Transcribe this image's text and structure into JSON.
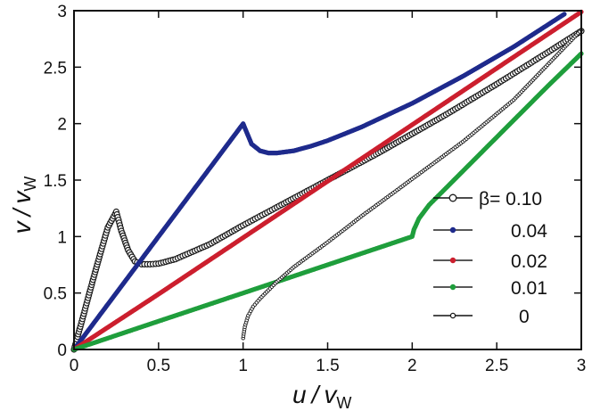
{
  "chart_data": {
    "type": "line",
    "title": "",
    "xlabel": {
      "main": "u",
      "slash": "/",
      "v": "v",
      "sub": "W"
    },
    "ylabel": {
      "main": "v",
      "slash": "/",
      "v": "v",
      "sub": "W"
    },
    "xlim": [
      0,
      3
    ],
    "ylim": [
      0,
      3
    ],
    "x_ticks": [
      "0",
      "0.5",
      "1",
      "1.5",
      "2",
      "2.5",
      "3"
    ],
    "x_tick_values": [
      0,
      0.5,
      1,
      1.5,
      2,
      2.5,
      3
    ],
    "y_ticks": [
      "0",
      "0.5",
      "1",
      "1.5",
      "2",
      "2.5",
      "3"
    ],
    "y_tick_values": [
      0,
      0.5,
      1,
      1.5,
      2,
      2.5,
      3
    ],
    "legend_position": "lower-right",
    "legend_title": "β",
    "series": [
      {
        "name": "0.10",
        "label": "β= 0.10",
        "color": "#1a1a1a",
        "marker": "open-circle",
        "x": [
          0,
          0.05,
          0.1,
          0.15,
          0.2,
          0.25,
          0.28,
          0.32,
          0.36,
          0.4,
          0.45,
          0.5,
          0.6,
          0.8,
          1.0,
          1.2,
          1.5,
          1.8,
          2.0,
          2.2,
          2.5,
          2.8,
          3.0
        ],
        "y": [
          0,
          0.27,
          0.55,
          0.82,
          1.08,
          1.22,
          1.05,
          0.88,
          0.78,
          0.755,
          0.755,
          0.76,
          0.8,
          0.93,
          1.1,
          1.26,
          1.5,
          1.74,
          1.91,
          2.08,
          2.35,
          2.63,
          2.82
        ]
      },
      {
        "name": "0.04",
        "label": "0.04",
        "color": "#1e2a8c",
        "marker": "filled-circle",
        "x": [
          0,
          0.25,
          0.5,
          0.75,
          1.0,
          1.05,
          1.1,
          1.15,
          1.2,
          1.3,
          1.4,
          1.5,
          1.7,
          2.0,
          2.3,
          2.6,
          2.9
        ],
        "y": [
          0,
          0.5,
          1.0,
          1.5,
          2.0,
          1.82,
          1.76,
          1.74,
          1.74,
          1.76,
          1.8,
          1.85,
          1.97,
          2.18,
          2.42,
          2.68,
          2.97
        ]
      },
      {
        "name": "0.02",
        "label": "0.02",
        "color": "#cc1f2e",
        "marker": "filled-circle",
        "x": [
          0,
          0.5,
          1.0,
          1.5,
          2.0,
          2.5,
          3.0
        ],
        "y": [
          0,
          0.49,
          0.99,
          1.49,
          1.99,
          2.49,
          2.99
        ]
      },
      {
        "name": "0.01",
        "label": "0.01",
        "color": "#1f9e3c",
        "marker": "filled-circle",
        "x": [
          0,
          0.5,
          1.0,
          1.5,
          2.0,
          2.01,
          2.04,
          2.1,
          2.2,
          2.4,
          2.6,
          2.8,
          3.0
        ],
        "y": [
          0,
          0.25,
          0.5,
          0.75,
          1.0,
          1.06,
          1.16,
          1.28,
          1.43,
          1.73,
          2.03,
          2.33,
          2.62
        ]
      },
      {
        "name": "0",
        "label": "0",
        "color": "#1a1a1a",
        "marker": "open-circle-small",
        "x": [
          1.0,
          1.01,
          1.03,
          1.06,
          1.1,
          1.2,
          1.3,
          1.5,
          1.7,
          2.0,
          2.3,
          2.6,
          3.0
        ],
        "y": [
          0.1,
          0.2,
          0.3,
          0.38,
          0.45,
          0.6,
          0.73,
          0.95,
          1.18,
          1.51,
          1.84,
          2.21,
          2.83
        ]
      }
    ]
  }
}
